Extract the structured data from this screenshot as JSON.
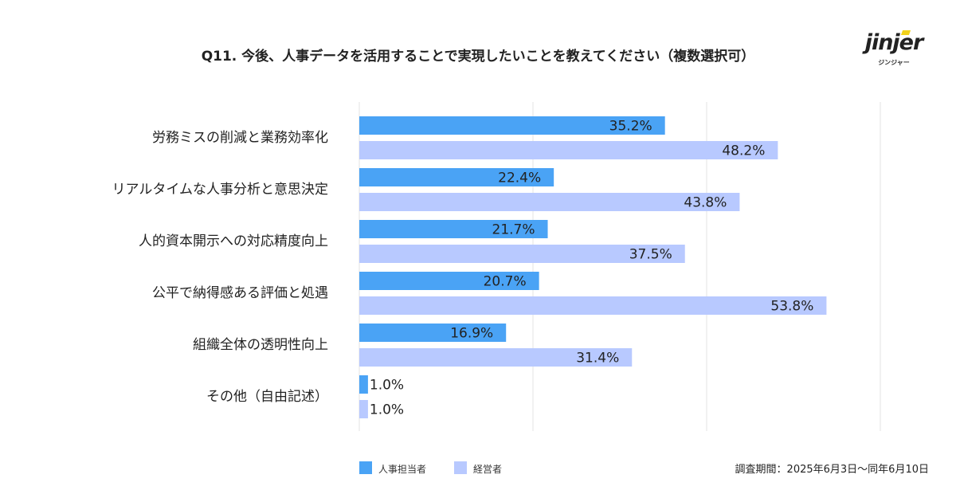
{
  "title": "Q11. 今後、人事データを活用することで実現したいことを教えてください（複数選択可）",
  "logo": {
    "word": "jinjer",
    "kana": "ジンジャー"
  },
  "footnote": "調査期間：2025年6月3日〜同年6月10日",
  "colors": {
    "hr": "#4aa3f5",
    "exec": "#b8c9ff",
    "grid": "#e3e3e3"
  },
  "chart_data": {
    "type": "bar",
    "orientation": "horizontal",
    "categories": [
      "労務ミスの削減と業務効率化",
      "リアルタイムな人事分析と意思決定",
      "人的資本開示への対応精度向上",
      "公平で納得感ある評価と処遇",
      "組織全体の透明性向上",
      "その他（自由記述）"
    ],
    "series": [
      {
        "name": "人事担当者",
        "values": [
          35.2,
          22.4,
          21.7,
          20.7,
          16.9,
          1.0
        ],
        "labels": [
          "35.2%",
          "22.4%",
          "21.7%",
          "20.7%",
          "16.9%",
          "1.0%"
        ]
      },
      {
        "name": "経営者",
        "values": [
          48.2,
          43.8,
          37.5,
          53.8,
          31.4,
          1.0
        ],
        "labels": [
          "48.2%",
          "43.8%",
          "37.5%",
          "53.8%",
          "31.4%",
          "1.0%"
        ]
      }
    ],
    "xlim": [
      0,
      60
    ],
    "gridlines": [
      0,
      20,
      40,
      60
    ],
    "grid": true,
    "legend": "bottom-left"
  }
}
